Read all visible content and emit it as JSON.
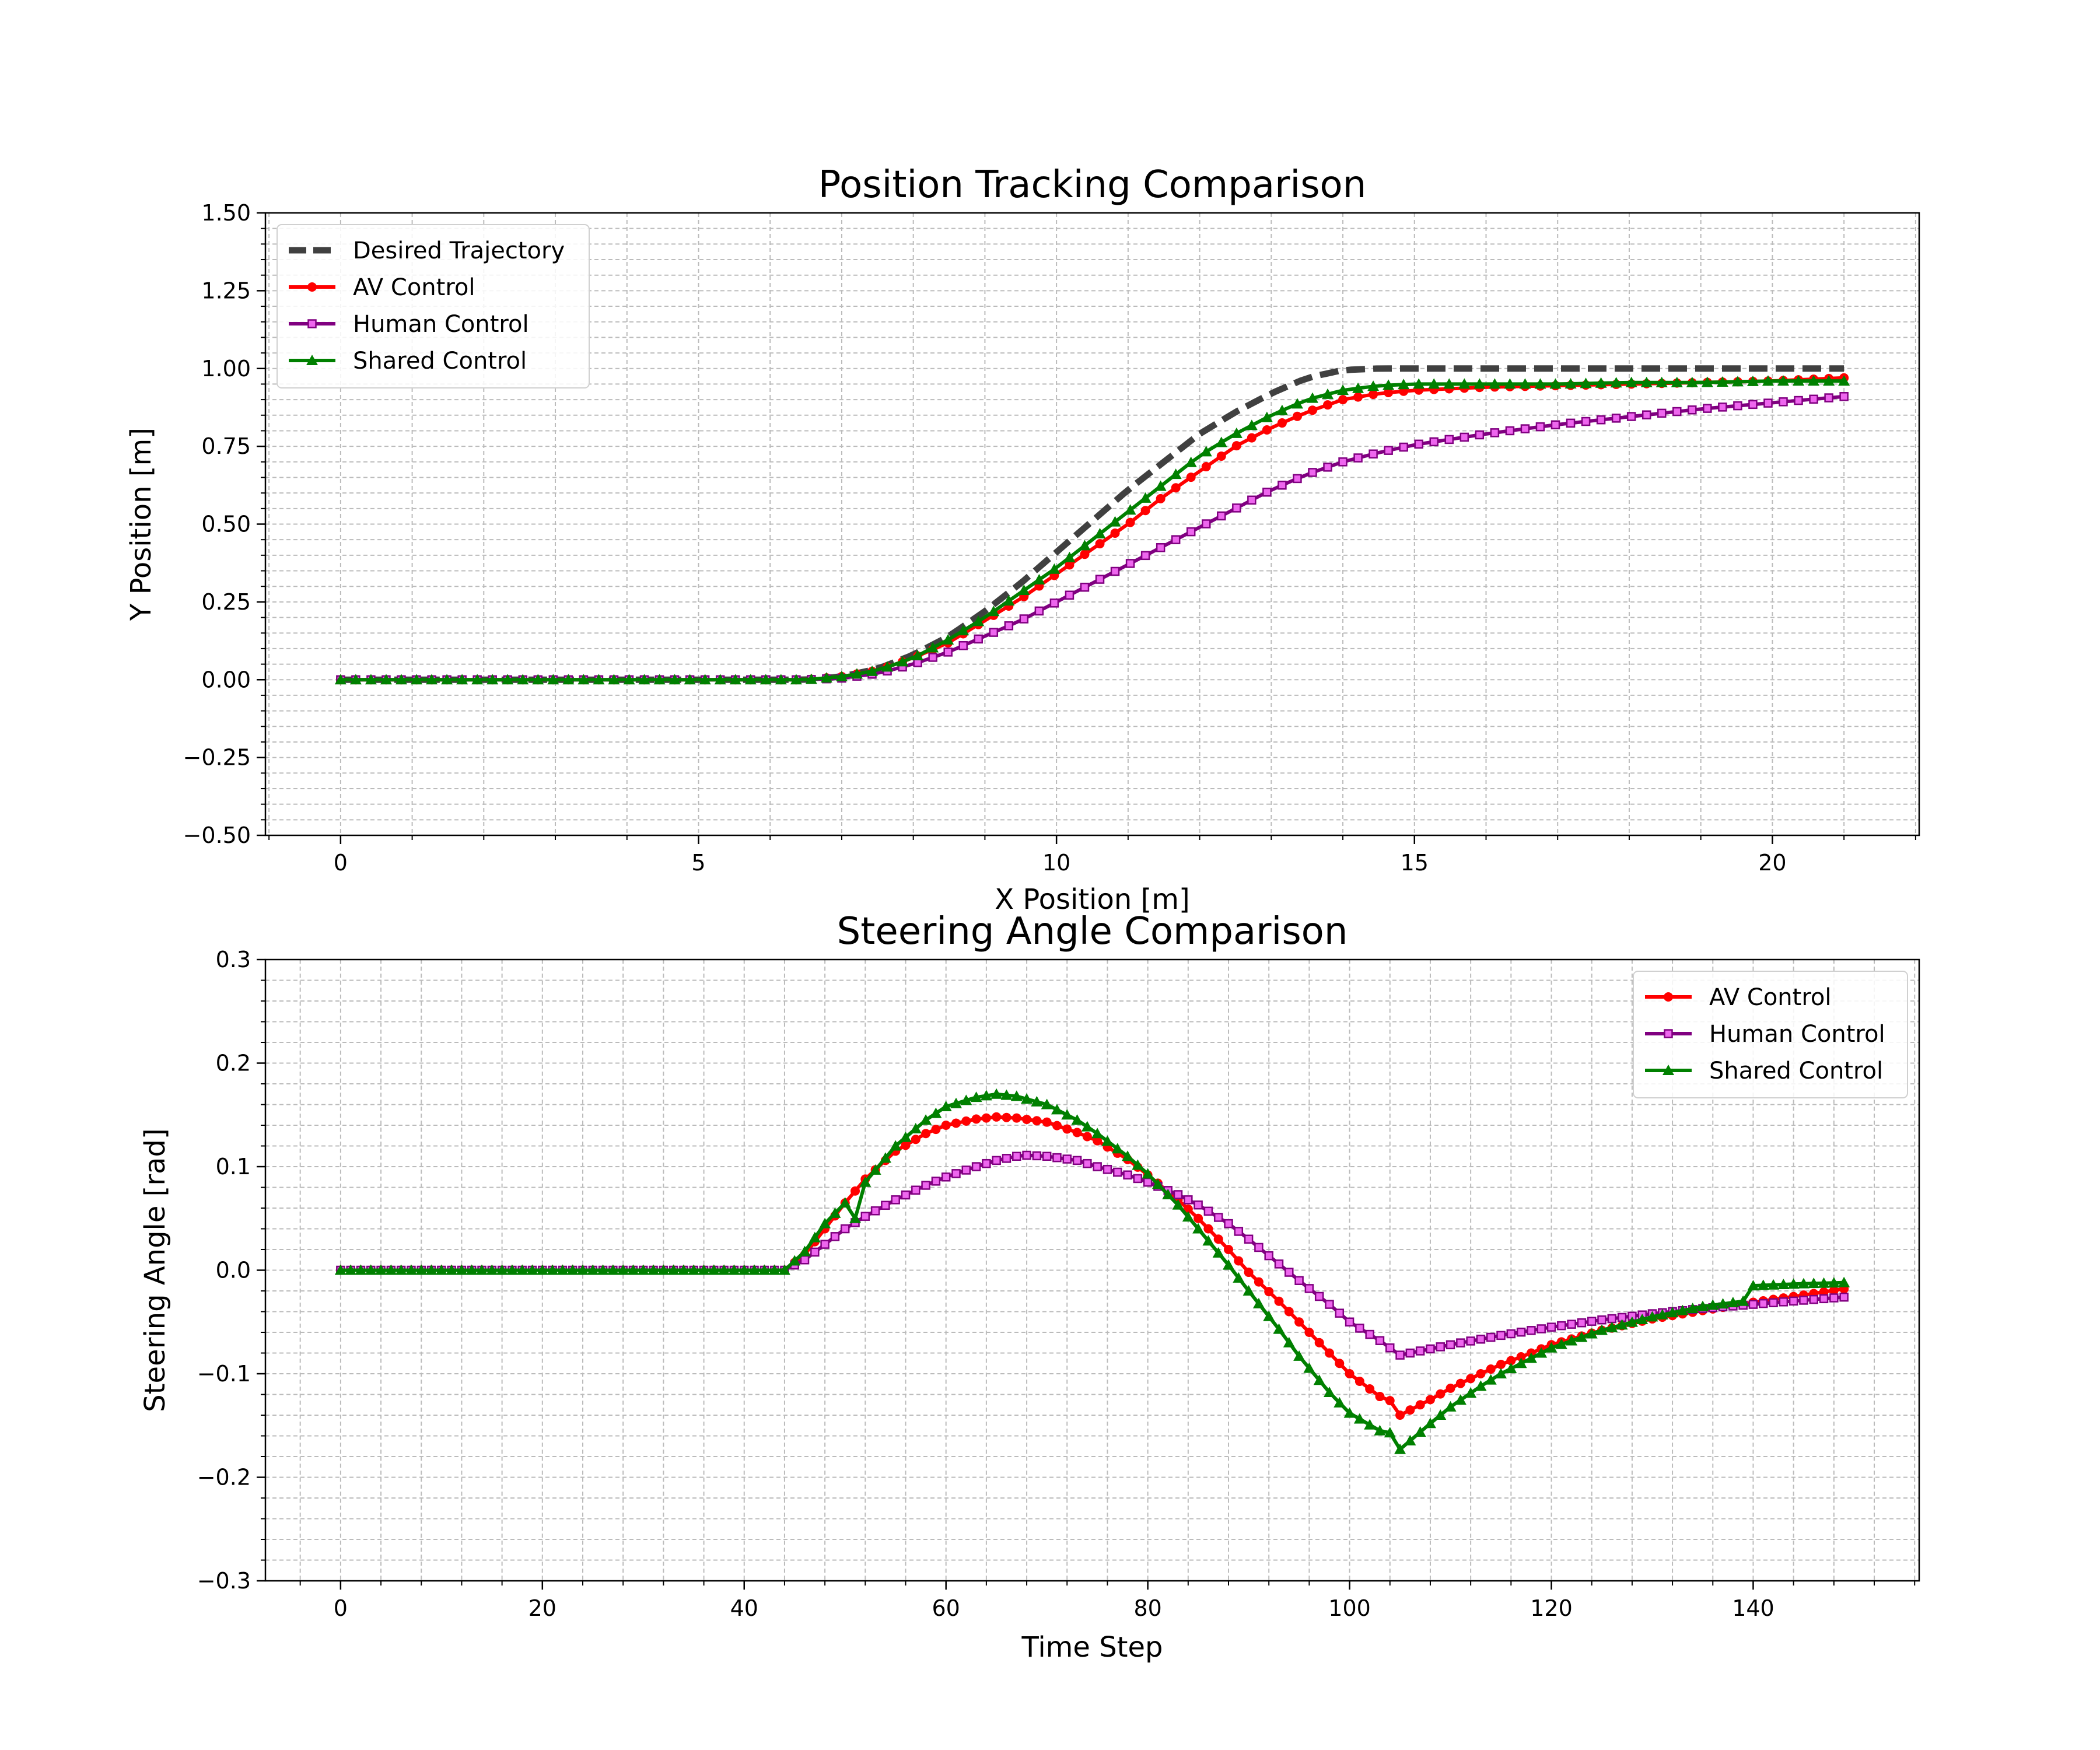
{
  "chart_data": [
    {
      "type": "line",
      "title": "Position Tracking Comparison",
      "xlabel": "X Position [m]",
      "ylabel": "Y Position [m]",
      "xlim": [
        -1.05,
        22.05
      ],
      "ylim": [
        -0.5,
        1.5
      ],
      "xticks": [
        0,
        5,
        10,
        15,
        20
      ],
      "xtick_labels": [
        "0",
        "5",
        "10",
        "15",
        "20"
      ],
      "yticks": [
        -0.5,
        -0.25,
        0,
        0.25,
        0.5,
        0.75,
        1.0,
        1.25,
        1.5
      ],
      "ytick_labels": [
        "−0.50",
        "−0.25",
        "0.00",
        "0.25",
        "0.50",
        "0.75",
        "1.00",
        "1.25",
        "1.50"
      ],
      "grid": true,
      "legend_position": "upper-left",
      "series": [
        {
          "name": "Desired Trajectory",
          "color": "#404040",
          "style": "dashed",
          "marker": "none",
          "x": [
            0,
            6.5,
            7,
            7.5,
            8,
            8.5,
            9,
            9.5,
            10,
            10.5,
            11,
            11.5,
            12,
            12.5,
            13,
            13.5,
            14,
            14.5,
            15,
            17,
            20,
            21
          ],
          "y": [
            0,
            0,
            0.01,
            0.035,
            0.08,
            0.14,
            0.22,
            0.31,
            0.41,
            0.51,
            0.61,
            0.7,
            0.79,
            0.86,
            0.92,
            0.97,
            0.995,
            1.0,
            1.0,
            1.0,
            1.0,
            1.0
          ]
        },
        {
          "name": "AV Control",
          "color": "#ff0000",
          "style": "solid",
          "marker": "circle",
          "x": [
            0,
            6.5,
            7,
            7.5,
            8,
            8.5,
            9,
            9.5,
            10,
            10.5,
            11,
            11.5,
            12,
            12.5,
            13,
            13.5,
            14,
            14.5,
            15,
            16,
            17,
            18,
            19,
            20,
            21
          ],
          "y": [
            0,
            0,
            0.01,
            0.03,
            0.07,
            0.12,
            0.19,
            0.26,
            0.34,
            0.42,
            0.5,
            0.59,
            0.67,
            0.75,
            0.81,
            0.86,
            0.9,
            0.92,
            0.93,
            0.94,
            0.945,
            0.95,
            0.955,
            0.96,
            0.97
          ]
        },
        {
          "name": "Human Control",
          "color": "#800080",
          "style": "solid",
          "marker": "square",
          "x": [
            0,
            6.5,
            7,
            7.5,
            8,
            8.5,
            9,
            9.5,
            10,
            10.5,
            11,
            11.5,
            12,
            12.5,
            13,
            13.5,
            14,
            14.5,
            15,
            16,
            17,
            18,
            19,
            20,
            21
          ],
          "y": [
            0,
            0,
            0.005,
            0.02,
            0.05,
            0.09,
            0.14,
            0.19,
            0.25,
            0.31,
            0.37,
            0.43,
            0.49,
            0.55,
            0.61,
            0.66,
            0.7,
            0.73,
            0.755,
            0.79,
            0.82,
            0.845,
            0.87,
            0.89,
            0.91
          ]
        },
        {
          "name": "Shared Control",
          "color": "#008000",
          "style": "solid",
          "marker": "triangle",
          "x": [
            0,
            6.5,
            7,
            7.5,
            8,
            8.5,
            9,
            9.5,
            10,
            10.5,
            11,
            11.5,
            12,
            12.5,
            13,
            13.5,
            14,
            14.5,
            15,
            16,
            17,
            18,
            19,
            20,
            21
          ],
          "y": [
            0,
            0,
            0.01,
            0.03,
            0.07,
            0.13,
            0.2,
            0.28,
            0.36,
            0.45,
            0.54,
            0.63,
            0.72,
            0.79,
            0.85,
            0.9,
            0.93,
            0.945,
            0.95,
            0.95,
            0.95,
            0.955,
            0.955,
            0.96,
            0.96
          ]
        }
      ]
    },
    {
      "type": "line",
      "title": "Steering Angle Comparison",
      "xlabel": "Time Step",
      "ylabel": "Steering Angle [rad]",
      "xlim": [
        -7.45,
        156.45
      ],
      "ylim": [
        -0.3,
        0.3
      ],
      "xticks": [
        0,
        20,
        40,
        60,
        80,
        100,
        120,
        140
      ],
      "xtick_labels": [
        "0",
        "20",
        "40",
        "60",
        "80",
        "100",
        "120",
        "140"
      ],
      "yticks": [
        -0.3,
        -0.2,
        -0.1,
        0,
        0.1,
        0.2,
        0.3
      ],
      "ytick_labels": [
        "−0.3",
        "−0.2",
        "−0.1",
        "0.0",
        "0.1",
        "0.2",
        "0.3"
      ],
      "grid": true,
      "legend_position": "upper-right",
      "series": [
        {
          "name": "AV Control",
          "color": "#ff0000",
          "style": "solid",
          "marker": "circle",
          "x": [
            0,
            44,
            46,
            48,
            50,
            52,
            55,
            58,
            60,
            63,
            65,
            67,
            70,
            73,
            75,
            78,
            80,
            83,
            85,
            88,
            90,
            93,
            95,
            98,
            100,
            103,
            104,
            105,
            108,
            110,
            113,
            115,
            118,
            120,
            125,
            130,
            135,
            140,
            145,
            149
          ],
          "y": [
            0,
            0,
            0.015,
            0.04,
            0.065,
            0.088,
            0.115,
            0.132,
            0.14,
            0.146,
            0.148,
            0.147,
            0.143,
            0.133,
            0.125,
            0.107,
            0.092,
            0.068,
            0.05,
            0.02,
            -0.002,
            -0.03,
            -0.05,
            -0.08,
            -0.1,
            -0.122,
            -0.126,
            -0.14,
            -0.125,
            -0.114,
            -0.1,
            -0.091,
            -0.08,
            -0.072,
            -0.058,
            -0.047,
            -0.039,
            -0.031,
            -0.024,
            -0.018
          ]
        },
        {
          "name": "Human Control",
          "color": "#800080",
          "style": "solid",
          "marker": "square",
          "x": [
            0,
            44,
            46,
            48,
            50,
            52,
            55,
            58,
            60,
            63,
            65,
            67,
            68,
            70,
            73,
            75,
            78,
            80,
            83,
            85,
            88,
            90,
            93,
            95,
            98,
            100,
            103,
            105,
            108,
            110,
            115,
            120,
            125,
            130,
            135,
            140,
            145,
            149
          ],
          "y": [
            0,
            0,
            0.01,
            0.025,
            0.04,
            0.052,
            0.068,
            0.082,
            0.09,
            0.1,
            0.106,
            0.11,
            0.111,
            0.11,
            0.106,
            0.1,
            0.092,
            0.085,
            0.073,
            0.063,
            0.045,
            0.03,
            0.006,
            -0.01,
            -0.033,
            -0.05,
            -0.068,
            -0.082,
            -0.076,
            -0.072,
            -0.063,
            -0.055,
            -0.048,
            -0.042,
            -0.037,
            -0.033,
            -0.029,
            -0.026
          ]
        },
        {
          "name": "Shared Control",
          "color": "#008000",
          "style": "solid",
          "marker": "triangle",
          "x": [
            0,
            44,
            46,
            48,
            50,
            51,
            52,
            55,
            58,
            60,
            63,
            65,
            67,
            70,
            73,
            75,
            78,
            80,
            83,
            85,
            88,
            90,
            93,
            95,
            98,
            100,
            103,
            104,
            105,
            108,
            110,
            113,
            115,
            118,
            120,
            125,
            130,
            135,
            139,
            140,
            145,
            149
          ],
          "y": [
            0,
            0,
            0.018,
            0.045,
            0.065,
            0.05,
            0.085,
            0.12,
            0.145,
            0.158,
            0.167,
            0.17,
            0.168,
            0.16,
            0.145,
            0.132,
            0.11,
            0.093,
            0.063,
            0.04,
            0.005,
            -0.02,
            -0.057,
            -0.083,
            -0.118,
            -0.138,
            -0.155,
            -0.157,
            -0.173,
            -0.148,
            -0.132,
            -0.112,
            -0.1,
            -0.085,
            -0.075,
            -0.058,
            -0.045,
            -0.035,
            -0.03,
            -0.015,
            -0.013,
            -0.012
          ]
        }
      ]
    }
  ]
}
